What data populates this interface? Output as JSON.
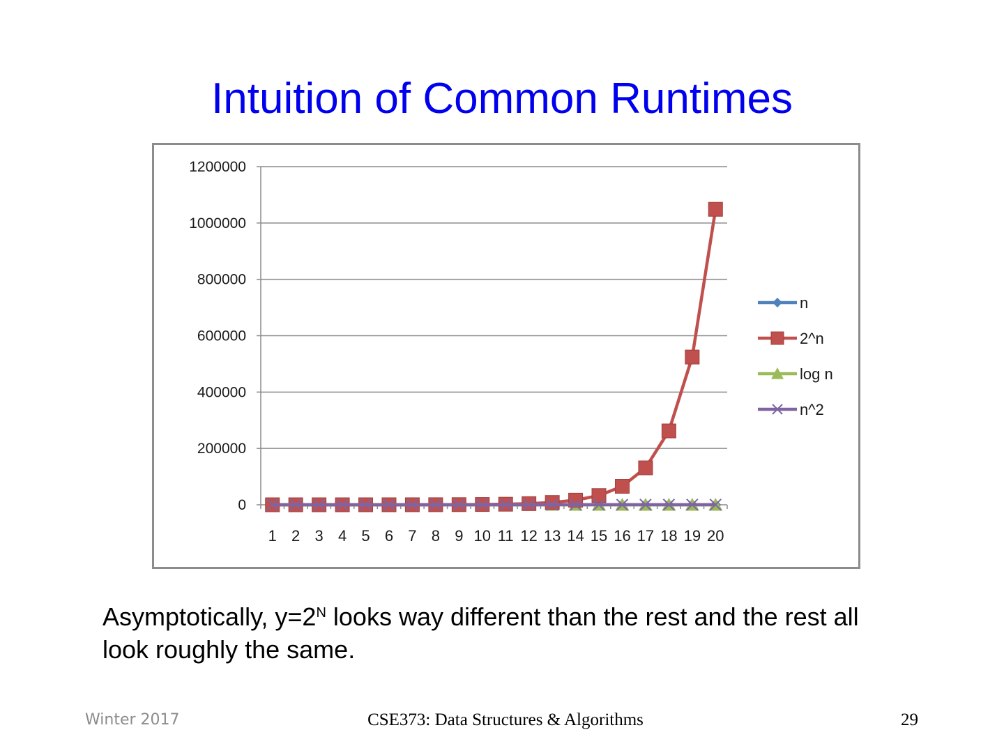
{
  "slide": {
    "title": "Intuition of Common Runtimes",
    "caption_before": "Asymptotically, y=2",
    "caption_sup": "N",
    "caption_after": " looks way different than the rest and the rest all look roughly the same."
  },
  "footer": {
    "left": "Winter 2017",
    "center": "CSE373: Data Structures & Algorithms",
    "page_number": "29"
  },
  "colors": {
    "title": "#0000ee",
    "grid": "#8c8c8c",
    "axis": "#8c8c8c"
  },
  "chart_data": {
    "type": "line",
    "title": "",
    "xlabel": "",
    "ylabel": "",
    "categories": [
      "1",
      "2",
      "3",
      "4",
      "5",
      "6",
      "7",
      "8",
      "9",
      "10",
      "11",
      "12",
      "13",
      "14",
      "15",
      "16",
      "17",
      "18",
      "19",
      "20"
    ],
    "ylim": [
      0,
      1200000
    ],
    "y_ticks": [
      0,
      200000,
      400000,
      600000,
      800000,
      1000000,
      1200000
    ],
    "y_tick_labels": [
      "0",
      "200000",
      "400000",
      "600000",
      "800000",
      "1000000",
      "1200000"
    ],
    "grid": true,
    "legend_position": "right",
    "series": [
      {
        "name": "n",
        "color": "#4f81bd",
        "marker": "diamond",
        "values": [
          1,
          2,
          3,
          4,
          5,
          6,
          7,
          8,
          9,
          10,
          11,
          12,
          13,
          14,
          15,
          16,
          17,
          18,
          19,
          20
        ]
      },
      {
        "name": "2^n",
        "color": "#c0504d",
        "marker": "square",
        "values": [
          2,
          4,
          8,
          16,
          32,
          64,
          128,
          256,
          512,
          1024,
          2048,
          4096,
          8192,
          16384,
          32768,
          65536,
          131072,
          262144,
          524288,
          1048576
        ]
      },
      {
        "name": "log n",
        "color": "#9bbb59",
        "marker": "triangle",
        "values": [
          0,
          0.693,
          1.099,
          1.386,
          1.609,
          1.792,
          1.946,
          2.079,
          2.197,
          2.303,
          2.398,
          2.485,
          2.565,
          2.639,
          2.708,
          2.773,
          2.833,
          2.89,
          2.944,
          2.996
        ]
      },
      {
        "name": "n^2",
        "color": "#8064a2",
        "marker": "x",
        "values": [
          1,
          4,
          9,
          16,
          25,
          36,
          49,
          64,
          81,
          100,
          121,
          144,
          169,
          196,
          225,
          256,
          289,
          324,
          361,
          400
        ]
      }
    ]
  }
}
